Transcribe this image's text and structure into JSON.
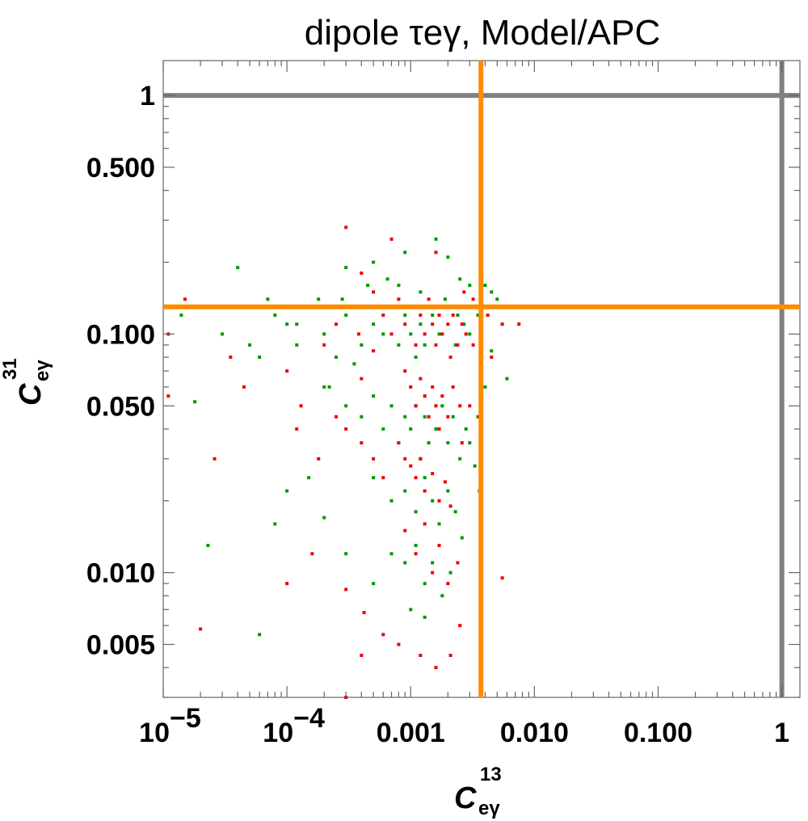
{
  "chart_data": {
    "type": "scatter",
    "title": "dipole τeγ, Model/APC",
    "xscale": "log",
    "yscale": "log",
    "xlim": [
      1e-05,
      1.4
    ],
    "ylim": [
      0.003,
      1.4
    ],
    "xlabel": {
      "base": "C",
      "sub": "eγ",
      "sup": "13"
    },
    "ylabel": {
      "base": "C",
      "sub": "eγ",
      "sup": "31"
    },
    "x_ticks": [
      {
        "value": 1e-05,
        "base": "10",
        "exp": "−5"
      },
      {
        "value": 0.0001,
        "base": "10",
        "exp": "−4"
      },
      {
        "value": 0.001,
        "base": "0.001",
        "exp": ""
      },
      {
        "value": 0.01,
        "base": "0.010",
        "exp": ""
      },
      {
        "value": 0.1,
        "base": "0.100",
        "exp": ""
      },
      {
        "value": 1,
        "base": "1",
        "exp": ""
      }
    ],
    "y_ticks": [
      {
        "value": 1,
        "label": "1"
      },
      {
        "value": 0.5,
        "label": "0.500"
      },
      {
        "value": 0.1,
        "label": "0.100"
      },
      {
        "value": 0.05,
        "label": "0.050"
      },
      {
        "value": 0.01,
        "label": "0.010"
      },
      {
        "value": 0.005,
        "label": "0.005"
      }
    ],
    "reference_lines": [
      {
        "orientation": "vertical",
        "value": 1,
        "color": "#808080"
      },
      {
        "orientation": "horizontal",
        "value": 1,
        "color": "#808080"
      },
      {
        "orientation": "vertical",
        "value": 0.0037,
        "color": "#ff8c00"
      },
      {
        "orientation": "horizontal",
        "value": 0.13,
        "color": "#ff8c00"
      }
    ],
    "series": [
      {
        "color": "#009900",
        "points": [
          [
            1.8e-05,
            0.052
          ],
          [
            1.4e-05,
            0.12
          ],
          [
            3e-05,
            0.1
          ],
          [
            4e-05,
            0.19
          ],
          [
            5e-05,
            0.09
          ],
          [
            7e-05,
            0.14
          ],
          [
            6e-05,
            0.08
          ],
          [
            8e-05,
            0.12
          ],
          [
            0.0001,
            0.11
          ],
          [
            0.00012,
            0.09
          ],
          [
            0.00015,
            0.13
          ],
          [
            0.0002,
            0.1
          ],
          [
            0.00025,
            0.08
          ],
          [
            0.0003,
            0.12
          ],
          [
            0.0004,
            0.09
          ],
          [
            0.0005,
            0.11
          ],
          [
            0.0006,
            0.1
          ],
          [
            0.0007,
            0.13
          ],
          [
            0.0008,
            0.09
          ],
          [
            0.0009,
            0.12
          ],
          [
            0.001,
            0.1
          ],
          [
            0.0011,
            0.08
          ],
          [
            0.0012,
            0.11
          ],
          [
            0.0013,
            0.09
          ],
          [
            0.0015,
            0.12
          ],
          [
            0.0017,
            0.1
          ],
          [
            0.002,
            0.13
          ],
          [
            0.0023,
            0.09
          ],
          [
            0.0027,
            0.11
          ],
          [
            0.003,
            0.1
          ],
          [
            0.0035,
            0.12
          ],
          [
            0.0045,
            0.15
          ],
          [
            0.006,
            0.065
          ],
          [
            0.0002,
            0.06
          ],
          [
            0.0003,
            0.05
          ],
          [
            0.0004,
            0.045
          ],
          [
            0.0005,
            0.055
          ],
          [
            0.0006,
            0.04
          ],
          [
            0.0007,
            0.05
          ],
          [
            0.0008,
            0.035
          ],
          [
            0.0009,
            0.045
          ],
          [
            0.001,
            0.04
          ],
          [
            0.0011,
            0.05
          ],
          [
            0.0012,
            0.03
          ],
          [
            0.0013,
            0.045
          ],
          [
            0.0014,
            0.035
          ],
          [
            0.0016,
            0.04
          ],
          [
            0.0018,
            0.05
          ],
          [
            0.002,
            0.035
          ],
          [
            0.0022,
            0.045
          ],
          [
            0.0025,
            0.03
          ],
          [
            0.0028,
            0.04
          ],
          [
            0.003,
            0.035
          ],
          [
            0.0005,
            0.025
          ],
          [
            0.0007,
            0.02
          ],
          [
            0.0009,
            0.022
          ],
          [
            0.0011,
            0.018
          ],
          [
            0.0013,
            0.025
          ],
          [
            0.0015,
            0.02
          ],
          [
            0.0017,
            0.016
          ],
          [
            0.002,
            0.022
          ],
          [
            0.0023,
            0.018
          ],
          [
            0.0026,
            0.014
          ],
          [
            0.0007,
            0.012
          ],
          [
            0.0009,
            0.011
          ],
          [
            0.0011,
            0.013
          ],
          [
            0.0013,
            0.009
          ],
          [
            0.0015,
            0.011
          ],
          [
            0.0018,
            0.008
          ],
          [
            0.0021,
            0.01
          ],
          [
            0.0005,
            0.009
          ],
          [
            0.0003,
            0.012
          ],
          [
            0.0002,
            0.017
          ],
          [
            0.00015,
            0.025
          ],
          [
            0.0001,
            0.022
          ],
          [
            8e-05,
            0.016
          ],
          [
            2.3e-05,
            0.013
          ],
          [
            0.00022,
            0.06
          ],
          [
            0.00035,
            0.075
          ],
          [
            0.0003,
            0.19
          ],
          [
            0.0005,
            0.2
          ],
          [
            0.0009,
            0.22
          ],
          [
            0.0016,
            0.25
          ],
          [
            0.002,
            0.21
          ],
          [
            0.0025,
            0.17
          ],
          [
            0.003,
            0.16
          ],
          [
            0.004,
            0.16
          ],
          [
            0.005,
            0.14
          ],
          [
            0.0065,
            0.13
          ],
          [
            0.0045,
            0.085
          ],
          [
            0.004,
            0.06
          ],
          [
            0.0035,
            0.045
          ],
          [
            0.0033,
            0.028
          ],
          [
            0.0036,
            0.022
          ],
          [
            0.0013,
            0.0065
          ],
          [
            0.001,
            0.007
          ],
          [
            6e-05,
            0.0055
          ],
          [
            0.00012,
            0.11
          ],
          [
            0.00018,
            0.14
          ],
          [
            0.00028,
            0.14
          ],
          [
            0.00045,
            0.16
          ],
          [
            0.00065,
            0.17
          ],
          [
            0.0008,
            0.16
          ],
          [
            0.0012,
            0.15
          ],
          [
            0.0014,
            0.13
          ],
          [
            0.0019,
            0.14
          ],
          [
            0.0024,
            0.12
          ],
          [
            0.0028,
            0.13
          ]
        ]
      },
      {
        "color": "#ee0000",
        "points": [
          [
            1.1e-05,
            0.1
          ],
          [
            1.1e-05,
            0.055
          ],
          [
            1.5e-05,
            0.14
          ],
          [
            2e-05,
            0.0058
          ],
          [
            2.6e-05,
            0.03
          ],
          [
            3.5e-05,
            0.08
          ],
          [
            4.5e-05,
            0.06
          ],
          [
            0.0001,
            0.07
          ],
          [
            0.00013,
            0.05
          ],
          [
            0.0002,
            0.09
          ],
          [
            0.0003,
            0.28
          ],
          [
            0.0004,
            0.18
          ],
          [
            0.0005,
            0.15
          ],
          [
            0.0006,
            0.12
          ],
          [
            0.0007,
            0.1
          ],
          [
            0.0008,
            0.14
          ],
          [
            0.0009,
            0.11
          ],
          [
            0.001,
            0.13
          ],
          [
            0.0011,
            0.09
          ],
          [
            0.0012,
            0.12
          ],
          [
            0.0013,
            0.1
          ],
          [
            0.0014,
            0.14
          ],
          [
            0.0015,
            0.11
          ],
          [
            0.0016,
            0.09
          ],
          [
            0.0017,
            0.12
          ],
          [
            0.0018,
            0.1
          ],
          [
            0.0019,
            0.13
          ],
          [
            0.002,
            0.11
          ],
          [
            0.0021,
            0.08
          ],
          [
            0.0022,
            0.12
          ],
          [
            0.0024,
            0.09
          ],
          [
            0.0026,
            0.11
          ],
          [
            0.0028,
            0.1
          ],
          [
            0.0032,
            0.09
          ],
          [
            0.0042,
            0.12
          ],
          [
            0.0055,
            0.11
          ],
          [
            0.0075,
            0.11
          ],
          [
            0.0007,
            0.25
          ],
          [
            0.0016,
            0.22
          ],
          [
            0.0009,
            0.07
          ],
          [
            0.001,
            0.06
          ],
          [
            0.0011,
            0.05
          ],
          [
            0.0012,
            0.065
          ],
          [
            0.0013,
            0.055
          ],
          [
            0.0014,
            0.045
          ],
          [
            0.0015,
            0.06
          ],
          [
            0.0016,
            0.05
          ],
          [
            0.0017,
            0.04
          ],
          [
            0.0018,
            0.055
          ],
          [
            0.002,
            0.045
          ],
          [
            0.0022,
            0.06
          ],
          [
            0.0025,
            0.05
          ],
          [
            0.0008,
            0.035
          ],
          [
            0.0009,
            0.03
          ],
          [
            0.001,
            0.028
          ],
          [
            0.0011,
            0.025
          ],
          [
            0.0012,
            0.03
          ],
          [
            0.0013,
            0.022
          ],
          [
            0.0015,
            0.026
          ],
          [
            0.0017,
            0.02
          ],
          [
            0.0019,
            0.024
          ],
          [
            0.0021,
            0.019
          ],
          [
            0.0006,
            0.025
          ],
          [
            0.0005,
            0.03
          ],
          [
            0.0004,
            0.035
          ],
          [
            0.0003,
            0.04
          ],
          [
            0.00025,
            0.045
          ],
          [
            0.00018,
            0.03
          ],
          [
            0.00012,
            0.04
          ],
          [
            0.0009,
            0.015
          ],
          [
            0.0011,
            0.012
          ],
          [
            0.0013,
            0.016
          ],
          [
            0.0015,
            0.01
          ],
          [
            0.0017,
            0.013
          ],
          [
            0.002,
            0.009
          ],
          [
            0.0024,
            0.011
          ],
          [
            0.0055,
            0.0095
          ],
          [
            0.0004,
            0.0045
          ],
          [
            0.0006,
            0.0055
          ],
          [
            0.0008,
            0.005
          ],
          [
            0.0012,
            0.0045
          ],
          [
            0.0016,
            0.004
          ],
          [
            0.0021,
            0.0045
          ],
          [
            0.0025,
            0.006
          ],
          [
            0.0003,
            0.003
          ],
          [
            0.00042,
            0.0068
          ],
          [
            0.0003,
            0.0085
          ],
          [
            0.00016,
            0.012
          ],
          [
            0.0001,
            0.009
          ],
          [
            0.0026,
            0.035
          ],
          [
            0.003,
            0.05
          ],
          [
            0.0036,
            0.045
          ],
          [
            0.0045,
            0.08
          ],
          [
            0.0027,
            0.15
          ],
          [
            0.0032,
            0.14
          ],
          [
            0.0005,
            0.085
          ],
          [
            0.00038,
            0.1
          ],
          [
            0.00025,
            0.11
          ],
          [
            0.00016,
            0.13
          ],
          [
            0.0004,
            0.065
          ]
        ]
      }
    ]
  }
}
